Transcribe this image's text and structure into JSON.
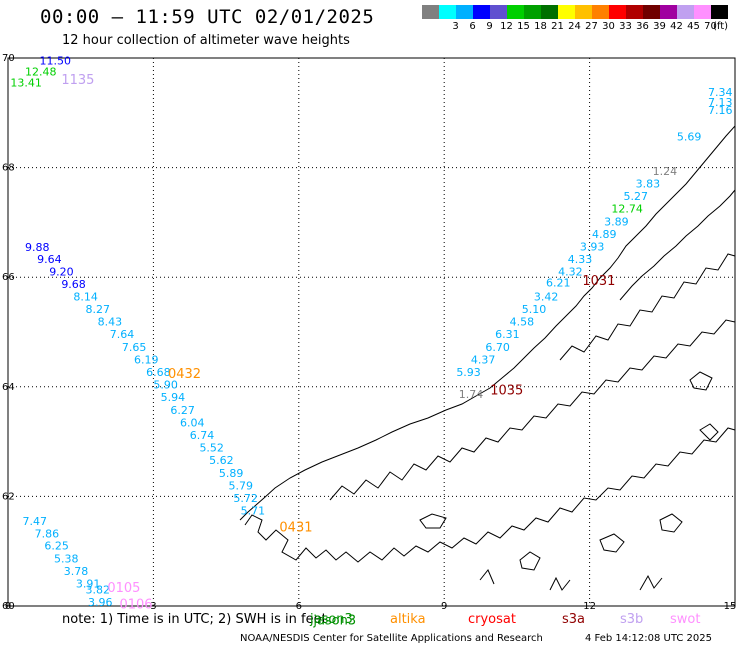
{
  "title": "00:00 – 11:59 UTC 02/01/2025",
  "subtitle": "12 hour collection of altimeter wave heights",
  "legend": {
    "unit": "(ft)",
    "swatches": [
      {
        "color": "#808080",
        "label": ""
      },
      {
        "color": "#00ffff",
        "label": "3"
      },
      {
        "color": "#00b0ff",
        "label": "6"
      },
      {
        "color": "#0000ff",
        "label": "9"
      },
      {
        "color": "#6050d0",
        "label": "12"
      },
      {
        "color": "#00d000",
        "label": "15"
      },
      {
        "color": "#00a000",
        "label": "18"
      },
      {
        "color": "#007000",
        "label": "21"
      },
      {
        "color": "#ffff00",
        "label": "24"
      },
      {
        "color": "#ffc000",
        "label": "27"
      },
      {
        "color": "#ff8000",
        "label": "30"
      },
      {
        "color": "#ff0000",
        "label": "33"
      },
      {
        "color": "#b00000",
        "label": "36"
      },
      {
        "color": "#700000",
        "label": "39"
      },
      {
        "color": "#a000a0",
        "label": "42"
      },
      {
        "color": "#c0a0f0",
        "label": "45"
      },
      {
        "color": "#ff90ff",
        "label": "70"
      },
      {
        "color": "#000000",
        "label": ""
      }
    ]
  },
  "axes": {
    "x_ticks": [
      "0",
      "3",
      "6",
      "9",
      "12",
      "15"
    ],
    "y_ticks": [
      "70",
      "68",
      "66",
      "64",
      "62",
      "60"
    ],
    "x_range": [
      0,
      15
    ],
    "y_range": [
      60,
      70
    ]
  },
  "satellites": [
    {
      "name": "jason3",
      "display": "jason3",
      "color": "#009000"
    },
    {
      "name": "altika",
      "display": "altika",
      "color": "#ff9000"
    },
    {
      "name": "cryosat",
      "display": "cryosat",
      "color": "#ff0000"
    },
    {
      "name": "s3a",
      "display": "s3a",
      "color": "#900000"
    },
    {
      "name": "s3b",
      "display": "s3b",
      "color": "#c0a0f0"
    },
    {
      "name": "swot",
      "display": "swot",
      "color": "#ff90ff"
    }
  ],
  "pass_labels": [
    {
      "text": "1135",
      "lon": 1.1,
      "lat": 69.62,
      "color": "#c0a0f0"
    },
    {
      "text": "0432",
      "lon": 3.3,
      "lat": 64.25,
      "color": "#ff9000"
    },
    {
      "text": "0431",
      "lon": 5.6,
      "lat": 61.45,
      "color": "#ff9000"
    },
    {
      "text": "0105",
      "lon": 2.05,
      "lat": 60.35,
      "color": "#ff90ff"
    },
    {
      "text": "0106",
      "lon": 2.3,
      "lat": 60.05,
      "color": "#ff90ff"
    },
    {
      "text": "1035",
      "lon": 9.95,
      "lat": 63.95,
      "color": "#900000"
    },
    {
      "text": "1031",
      "lon": 11.85,
      "lat": 65.95,
      "color": "#900000"
    },
    {
      "text": "jason3",
      "lon": 6.3,
      "lat": 59.75,
      "color": "#009000"
    }
  ],
  "wave_heights": [
    {
      "text": "11.50",
      "lon": 0.65,
      "lat": 69.95,
      "color": "#0000ff"
    },
    {
      "text": "12.48",
      "lon": 0.35,
      "lat": 69.75,
      "color": "#00d000"
    },
    {
      "text": "13.41",
      "lon": 0.05,
      "lat": 69.55,
      "color": "#00d000"
    },
    {
      "text": "9.88",
      "lon": 0.35,
      "lat": 66.55,
      "color": "#0000ff"
    },
    {
      "text": "9.64",
      "lon": 0.6,
      "lat": 66.33,
      "color": "#0000ff"
    },
    {
      "text": "9.20",
      "lon": 0.85,
      "lat": 66.1,
      "color": "#0000ff"
    },
    {
      "text": "9.68",
      "lon": 1.1,
      "lat": 65.88,
      "color": "#0000ff"
    },
    {
      "text": "8.14",
      "lon": 1.35,
      "lat": 65.65,
      "color": "#00b0ff"
    },
    {
      "text": "8.27",
      "lon": 1.6,
      "lat": 65.42,
      "color": "#00b0ff"
    },
    {
      "text": "8.43",
      "lon": 1.85,
      "lat": 65.19,
      "color": "#00b0ff"
    },
    {
      "text": "7.64",
      "lon": 2.1,
      "lat": 64.96,
      "color": "#00b0ff"
    },
    {
      "text": "7.65",
      "lon": 2.35,
      "lat": 64.73,
      "color": "#00b0ff"
    },
    {
      "text": "6.19",
      "lon": 2.6,
      "lat": 64.5,
      "color": "#00b0ff"
    },
    {
      "text": "6.68",
      "lon": 2.85,
      "lat": 64.27,
      "color": "#00b0ff"
    },
    {
      "text": "5.90",
      "lon": 3.0,
      "lat": 64.04,
      "color": "#00b0ff"
    },
    {
      "text": "5.94",
      "lon": 3.15,
      "lat": 63.81,
      "color": "#00b0ff"
    },
    {
      "text": "6.27",
      "lon": 3.35,
      "lat": 63.58,
      "color": "#00b0ff"
    },
    {
      "text": "6.04",
      "lon": 3.55,
      "lat": 63.35,
      "color": "#00b0ff"
    },
    {
      "text": "6.74",
      "lon": 3.75,
      "lat": 63.12,
      "color": "#00b0ff"
    },
    {
      "text": "5.52",
      "lon": 3.95,
      "lat": 62.89,
      "color": "#00b0ff"
    },
    {
      "text": "5.62",
      "lon": 4.15,
      "lat": 62.66,
      "color": "#00b0ff"
    },
    {
      "text": "5.89",
      "lon": 4.35,
      "lat": 62.43,
      "color": "#00b0ff"
    },
    {
      "text": "5.79",
      "lon": 4.55,
      "lat": 62.2,
      "color": "#00b0ff"
    },
    {
      "text": "5.72",
      "lon": 4.65,
      "lat": 61.97,
      "color": "#00b0ff"
    },
    {
      "text": "5.71",
      "lon": 4.8,
      "lat": 61.74,
      "color": "#00b0ff"
    },
    {
      "text": "7.47",
      "lon": 0.3,
      "lat": 61.55,
      "color": "#00b0ff"
    },
    {
      "text": "7.86",
      "lon": 0.55,
      "lat": 61.32,
      "color": "#00b0ff"
    },
    {
      "text": "6.25",
      "lon": 0.75,
      "lat": 61.1,
      "color": "#00b0ff"
    },
    {
      "text": "5.38",
      "lon": 0.95,
      "lat": 60.87,
      "color": "#00b0ff"
    },
    {
      "text": "3.78",
      "lon": 1.15,
      "lat": 60.64,
      "color": "#00b0ff"
    },
    {
      "text": "3.91",
      "lon": 1.4,
      "lat": 60.41,
      "color": "#00b0ff"
    },
    {
      "text": "3.82",
      "lon": 1.6,
      "lat": 60.3,
      "color": "#00b0ff"
    },
    {
      "text": "3.96",
      "lon": 1.65,
      "lat": 60.07,
      "color": "#00b0ff"
    },
    {
      "text": "1.74",
      "lon": 9.3,
      "lat": 63.87,
      "color": "#808080"
    },
    {
      "text": "5.93",
      "lon": 9.25,
      "lat": 64.27,
      "color": "#00b0ff"
    },
    {
      "text": "4.37",
      "lon": 9.55,
      "lat": 64.5,
      "color": "#00b0ff"
    },
    {
      "text": "6.70",
      "lon": 9.85,
      "lat": 64.73,
      "color": "#00b0ff"
    },
    {
      "text": "6.31",
      "lon": 10.05,
      "lat": 64.96,
      "color": "#00b0ff"
    },
    {
      "text": "4.58",
      "lon": 10.35,
      "lat": 65.19,
      "color": "#00b0ff"
    },
    {
      "text": "5.10",
      "lon": 10.6,
      "lat": 65.42,
      "color": "#00b0ff"
    },
    {
      "text": "3.42",
      "lon": 10.85,
      "lat": 65.65,
      "color": "#00b0ff"
    },
    {
      "text": "6.21",
      "lon": 11.1,
      "lat": 65.9,
      "color": "#00b0ff"
    },
    {
      "text": "4.32",
      "lon": 11.35,
      "lat": 66.1,
      "color": "#00b0ff"
    },
    {
      "text": "4.33",
      "lon": 11.55,
      "lat": 66.33,
      "color": "#00b0ff"
    },
    {
      "text": "3.93",
      "lon": 11.8,
      "lat": 66.56,
      "color": "#00b0ff"
    },
    {
      "text": "4.89",
      "lon": 12.05,
      "lat": 66.79,
      "color": "#00b0ff"
    },
    {
      "text": "3.89",
      "lon": 12.3,
      "lat": 67.02,
      "color": "#00b0ff"
    },
    {
      "text": "12.74",
      "lon": 12.45,
      "lat": 67.25,
      "color": "#00d000"
    },
    {
      "text": "5.27",
      "lon": 12.7,
      "lat": 67.48,
      "color": "#00b0ff"
    },
    {
      "text": "3.83",
      "lon": 12.95,
      "lat": 67.71,
      "color": "#00b0ff"
    },
    {
      "text": "1.24",
      "lon": 13.3,
      "lat": 67.94,
      "color": "#808080"
    },
    {
      "text": "5.69",
      "lon": 13.8,
      "lat": 68.57,
      "color": "#00b0ff"
    },
    {
      "text": "7.16",
      "lon": 14.6,
      "lat": 69.05,
      "color": "#00b0ff"
    },
    {
      "text": "7.13",
      "lon": 14.8,
      "lat": 69.2,
      "color": "#00b0ff"
    },
    {
      "text": "7.34",
      "lon": 14.9,
      "lat": 69.38,
      "color": "#00b0ff"
    }
  ],
  "note": "note:  1) Time is in UTC;  2) SWH is in feet",
  "footer_left": "NOAA/NESDIS Center for Satellite Applications and Research",
  "footer_right": "4 Feb 14:12:08 UTC 2025"
}
